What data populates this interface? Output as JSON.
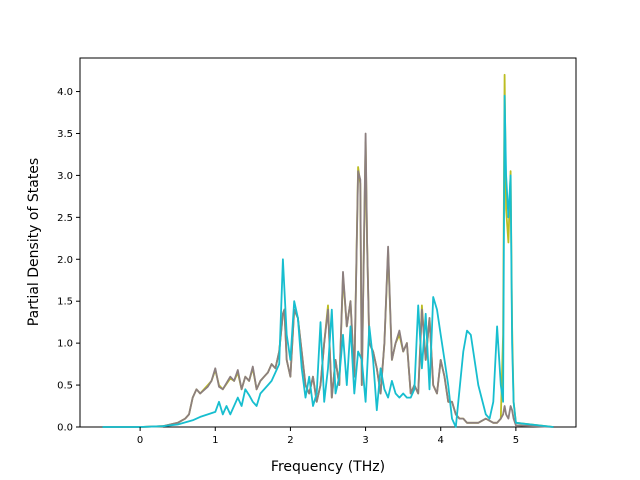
{
  "chart_data": {
    "type": "line",
    "title": "",
    "xlabel": "Frequency (THz)",
    "ylabel": "Partial Density of States",
    "xlim": [
      -0.8,
      5.8
    ],
    "ylim": [
      0.0,
      4.4
    ],
    "xticks": [
      0,
      1,
      2,
      3,
      4,
      5
    ],
    "xtick_labels": [
      "0",
      "1",
      "2",
      "3",
      "4",
      "5"
    ],
    "yticks": [
      0.0,
      0.5,
      1.0,
      1.5,
      2.0,
      2.5,
      3.0,
      3.5,
      4.0
    ],
    "ytick_labels": [
      "0.0",
      "0.5",
      "1.0",
      "1.5",
      "2.0",
      "2.5",
      "3.0",
      "3.5",
      "4.0"
    ],
    "grid": false,
    "legend": false,
    "series": [
      {
        "color": "#bcbd22",
        "x": [
          -0.5,
          0.0,
          0.3,
          0.5,
          0.6,
          0.65,
          0.7,
          0.75,
          0.8,
          0.9,
          0.95,
          1.0,
          1.05,
          1.1,
          1.2,
          1.25,
          1.3,
          1.35,
          1.4,
          1.45,
          1.5,
          1.55,
          1.6,
          1.65,
          1.7,
          1.75,
          1.8,
          1.85,
          1.9,
          1.92,
          1.95,
          2.0,
          2.05,
          2.1,
          2.15,
          2.2,
          2.25,
          2.3,
          2.35,
          2.4,
          2.45,
          2.5,
          2.55,
          2.6,
          2.65,
          2.7,
          2.75,
          2.8,
          2.85,
          2.9,
          2.93,
          2.95,
          3.0,
          3.02,
          3.05,
          3.1,
          3.15,
          3.2,
          3.25,
          3.3,
          3.35,
          3.4,
          3.45,
          3.5,
          3.55,
          3.6,
          3.65,
          3.7,
          3.75,
          3.8,
          3.85,
          3.9,
          3.95,
          4.0,
          4.05,
          4.1,
          4.15,
          4.2,
          4.25,
          4.3,
          4.35,
          4.4,
          4.5,
          4.6,
          4.7,
          4.75,
          4.8,
          4.83,
          4.85,
          4.87,
          4.9,
          4.93,
          4.95,
          4.97,
          5.0,
          5.5
        ],
        "y": [
          0.0,
          0.0,
          0.01,
          0.05,
          0.1,
          0.15,
          0.35,
          0.45,
          0.4,
          0.5,
          0.55,
          0.68,
          0.5,
          0.45,
          0.58,
          0.55,
          0.65,
          0.45,
          0.6,
          0.55,
          0.7,
          0.45,
          0.55,
          0.6,
          0.65,
          0.75,
          0.7,
          0.9,
          1.35,
          1.4,
          0.8,
          0.6,
          1.4,
          1.3,
          0.9,
          0.5,
          0.4,
          0.6,
          0.3,
          0.5,
          1.0,
          1.45,
          0.35,
          0.8,
          0.5,
          1.8,
          1.2,
          1.5,
          0.6,
          3.1,
          2.9,
          0.5,
          3.4,
          2.2,
          1.0,
          0.9,
          0.7,
          0.4,
          1.0,
          2.1,
          0.8,
          1.0,
          1.1,
          0.9,
          1.0,
          0.4,
          0.5,
          0.4,
          1.45,
          0.8,
          1.3,
          0.5,
          0.4,
          0.8,
          0.6,
          0.3,
          0.3,
          0.15,
          0.1,
          0.1,
          0.05,
          0.05,
          0.05,
          0.1,
          0.05,
          0.05,
          0.1,
          1.1,
          4.2,
          2.6,
          2.2,
          3.05,
          1.2,
          0.3,
          0.05,
          0.0
        ]
      },
      {
        "color": "#8c7f7f",
        "x": [
          -0.5,
          0.0,
          0.3,
          0.5,
          0.6,
          0.65,
          0.7,
          0.75,
          0.8,
          0.9,
          0.95,
          1.0,
          1.05,
          1.1,
          1.2,
          1.25,
          1.3,
          1.35,
          1.4,
          1.45,
          1.5,
          1.55,
          1.6,
          1.65,
          1.7,
          1.75,
          1.8,
          1.85,
          1.9,
          1.92,
          1.95,
          2.0,
          2.05,
          2.1,
          2.15,
          2.2,
          2.25,
          2.3,
          2.35,
          2.4,
          2.45,
          2.5,
          2.55,
          2.6,
          2.65,
          2.7,
          2.75,
          2.8,
          2.85,
          2.9,
          2.93,
          2.95,
          3.0,
          3.02,
          3.05,
          3.1,
          3.15,
          3.2,
          3.25,
          3.3,
          3.35,
          3.4,
          3.45,
          3.5,
          3.55,
          3.6,
          3.65,
          3.7,
          3.75,
          3.8,
          3.85,
          3.9,
          3.95,
          4.0,
          4.05,
          4.1,
          4.15,
          4.2,
          4.25,
          4.3,
          4.35,
          4.4,
          4.5,
          4.6,
          4.7,
          4.75,
          4.8,
          4.83,
          4.85,
          4.87,
          4.9,
          4.93,
          4.95,
          4.97,
          5.0,
          5.5
        ],
        "y": [
          0.0,
          0.0,
          0.01,
          0.05,
          0.1,
          0.15,
          0.35,
          0.45,
          0.4,
          0.48,
          0.55,
          0.7,
          0.48,
          0.45,
          0.6,
          0.55,
          0.68,
          0.45,
          0.6,
          0.55,
          0.72,
          0.45,
          0.55,
          0.6,
          0.65,
          0.75,
          0.7,
          0.9,
          1.35,
          1.4,
          0.8,
          0.6,
          1.4,
          1.3,
          0.9,
          0.5,
          0.4,
          0.6,
          0.3,
          0.5,
          1.0,
          1.4,
          0.35,
          0.8,
          0.5,
          1.85,
          1.2,
          1.5,
          0.6,
          3.05,
          2.95,
          0.5,
          3.5,
          2.2,
          1.0,
          0.9,
          0.7,
          0.4,
          1.0,
          2.15,
          0.8,
          1.0,
          1.15,
          0.9,
          1.0,
          0.4,
          0.5,
          0.4,
          1.4,
          0.8,
          1.3,
          0.5,
          0.4,
          0.8,
          0.6,
          0.3,
          0.3,
          0.15,
          0.1,
          0.1,
          0.05,
          0.05,
          0.05,
          0.1,
          0.05,
          0.05,
          0.1,
          0.15,
          0.25,
          0.15,
          0.1,
          0.25,
          0.2,
          0.1,
          0.02,
          0.0
        ]
      },
      {
        "color": "#17becf",
        "x": [
          -0.5,
          0.0,
          0.3,
          0.5,
          0.7,
          0.8,
          0.9,
          1.0,
          1.05,
          1.1,
          1.15,
          1.2,
          1.3,
          1.35,
          1.4,
          1.45,
          1.5,
          1.55,
          1.6,
          1.7,
          1.75,
          1.8,
          1.85,
          1.9,
          1.95,
          2.0,
          2.05,
          2.1,
          2.15,
          2.2,
          2.25,
          2.3,
          2.35,
          2.4,
          2.45,
          2.5,
          2.55,
          2.6,
          2.65,
          2.7,
          2.75,
          2.8,
          2.85,
          2.9,
          2.95,
          3.0,
          3.05,
          3.1,
          3.15,
          3.2,
          3.25,
          3.3,
          3.35,
          3.4,
          3.45,
          3.5,
          3.55,
          3.6,
          3.65,
          3.7,
          3.75,
          3.8,
          3.85,
          3.9,
          3.95,
          4.0,
          4.05,
          4.1,
          4.15,
          4.2,
          4.3,
          4.35,
          4.4,
          4.5,
          4.6,
          4.65,
          4.7,
          4.75,
          4.8,
          4.83,
          4.85,
          4.87,
          4.9,
          4.93,
          4.95,
          4.97,
          5.0,
          5.5
        ],
        "y": [
          0.0,
          0.0,
          0.01,
          0.03,
          0.08,
          0.12,
          0.15,
          0.18,
          0.3,
          0.15,
          0.25,
          0.15,
          0.35,
          0.25,
          0.45,
          0.38,
          0.3,
          0.25,
          0.4,
          0.5,
          0.55,
          0.65,
          0.75,
          2.0,
          1.1,
          0.8,
          1.5,
          1.3,
          0.7,
          0.35,
          0.6,
          0.25,
          0.4,
          1.25,
          0.3,
          0.7,
          1.4,
          0.4,
          0.6,
          1.1,
          0.5,
          1.2,
          0.4,
          0.9,
          0.8,
          0.3,
          1.2,
          0.8,
          0.2,
          0.7,
          0.45,
          0.35,
          0.55,
          0.4,
          0.35,
          0.4,
          0.35,
          0.35,
          0.45,
          1.45,
          0.7,
          1.35,
          0.45,
          1.55,
          1.4,
          1.1,
          0.8,
          0.5,
          0.1,
          0.0,
          0.9,
          1.15,
          1.1,
          0.5,
          0.15,
          0.1,
          0.3,
          1.2,
          0.5,
          0.3,
          3.95,
          3.0,
          2.5,
          3.0,
          1.0,
          0.3,
          0.05,
          0.0
        ]
      }
    ]
  }
}
